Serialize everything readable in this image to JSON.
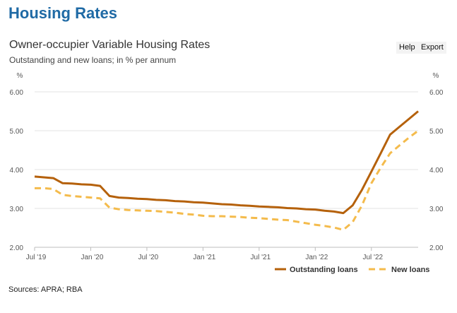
{
  "page": {
    "title": "Housing Rates"
  },
  "toolbar": {
    "help_label": "Help",
    "export_label": "Export"
  },
  "chart_data": {
    "type": "line",
    "title": "Owner-occupier Variable Housing Rates",
    "subtitle": "Outstanding and new loans; in % per annum",
    "ylabel_left": "%",
    "ylabel_right": "%",
    "ylim": [
      2.0,
      6.0
    ],
    "yticks": [
      "2.00",
      "3.00",
      "4.00",
      "5.00",
      "6.00"
    ],
    "xlim": [
      "2019-07",
      "2022-12"
    ],
    "xticks": [
      {
        "label": "Jul '19",
        "date": "2019-07"
      },
      {
        "label": "Jan '20",
        "date": "2020-01"
      },
      {
        "label": "Jul '20",
        "date": "2020-07"
      },
      {
        "label": "Jan '21",
        "date": "2021-01"
      },
      {
        "label": "Jul '21",
        "date": "2021-07"
      },
      {
        "label": "Jan '22",
        "date": "2022-01"
      },
      {
        "label": "Jul '22",
        "date": "2022-07"
      }
    ],
    "grid": "horizontal",
    "legend_position": "bottom-right",
    "series": [
      {
        "name": "Outstanding loans",
        "color": "#b5610b",
        "style": "solid",
        "points": [
          [
            "2019-07",
            3.82
          ],
          [
            "2019-08",
            3.8
          ],
          [
            "2019-09",
            3.78
          ],
          [
            "2019-10",
            3.65
          ],
          [
            "2019-11",
            3.64
          ],
          [
            "2019-12",
            3.62
          ],
          [
            "2020-01",
            3.61
          ],
          [
            "2020-02",
            3.58
          ],
          [
            "2020-03",
            3.32
          ],
          [
            "2020-04",
            3.28
          ],
          [
            "2020-05",
            3.27
          ],
          [
            "2020-06",
            3.25
          ],
          [
            "2020-07",
            3.24
          ],
          [
            "2020-08",
            3.22
          ],
          [
            "2020-09",
            3.21
          ],
          [
            "2020-10",
            3.19
          ],
          [
            "2020-11",
            3.18
          ],
          [
            "2020-12",
            3.16
          ],
          [
            "2021-01",
            3.15
          ],
          [
            "2021-02",
            3.13
          ],
          [
            "2021-03",
            3.11
          ],
          [
            "2021-04",
            3.1
          ],
          [
            "2021-05",
            3.08
          ],
          [
            "2021-06",
            3.07
          ],
          [
            "2021-07",
            3.05
          ],
          [
            "2021-08",
            3.04
          ],
          [
            "2021-09",
            3.03
          ],
          [
            "2021-10",
            3.01
          ],
          [
            "2021-11",
            3.0
          ],
          [
            "2021-12",
            2.98
          ],
          [
            "2022-01",
            2.97
          ],
          [
            "2022-02",
            2.94
          ],
          [
            "2022-03",
            2.92
          ],
          [
            "2022-04",
            2.88
          ],
          [
            "2022-05",
            3.08
          ],
          [
            "2022-06",
            3.48
          ],
          [
            "2022-07",
            3.95
          ],
          [
            "2022-08",
            4.42
          ],
          [
            "2022-09",
            4.9
          ],
          [
            "2022-10",
            5.1
          ],
          [
            "2022-11",
            5.3
          ],
          [
            "2022-12",
            5.5
          ]
        ]
      },
      {
        "name": "New loans",
        "color": "#f4bb4c",
        "style": "dashed",
        "points": [
          [
            "2019-07",
            3.52
          ],
          [
            "2019-08",
            3.52
          ],
          [
            "2019-09",
            3.5
          ],
          [
            "2019-10",
            3.35
          ],
          [
            "2019-11",
            3.32
          ],
          [
            "2019-12",
            3.3
          ],
          [
            "2020-01",
            3.28
          ],
          [
            "2020-02",
            3.26
          ],
          [
            "2020-03",
            3.02
          ],
          [
            "2020-04",
            2.98
          ],
          [
            "2020-05",
            2.96
          ],
          [
            "2020-06",
            2.95
          ],
          [
            "2020-07",
            2.94
          ],
          [
            "2020-08",
            2.93
          ],
          [
            "2020-09",
            2.91
          ],
          [
            "2020-10",
            2.89
          ],
          [
            "2020-11",
            2.86
          ],
          [
            "2020-12",
            2.84
          ],
          [
            "2021-01",
            2.81
          ],
          [
            "2021-02",
            2.8
          ],
          [
            "2021-03",
            2.8
          ],
          [
            "2021-04",
            2.79
          ],
          [
            "2021-05",
            2.78
          ],
          [
            "2021-06",
            2.76
          ],
          [
            "2021-07",
            2.75
          ],
          [
            "2021-08",
            2.73
          ],
          [
            "2021-09",
            2.71
          ],
          [
            "2021-10",
            2.7
          ],
          [
            "2021-11",
            2.66
          ],
          [
            "2021-12",
            2.62
          ],
          [
            "2022-01",
            2.58
          ],
          [
            "2022-02",
            2.55
          ],
          [
            "2022-03",
            2.51
          ],
          [
            "2022-04",
            2.45
          ],
          [
            "2022-05",
            2.65
          ],
          [
            "2022-06",
            3.08
          ],
          [
            "2022-07",
            3.65
          ],
          [
            "2022-08",
            4.05
          ],
          [
            "2022-09",
            4.42
          ],
          [
            "2022-10",
            4.62
          ],
          [
            "2022-11",
            4.82
          ],
          [
            "2022-12",
            5.0
          ]
        ]
      }
    ]
  },
  "source": "Sources: APRA; RBA"
}
